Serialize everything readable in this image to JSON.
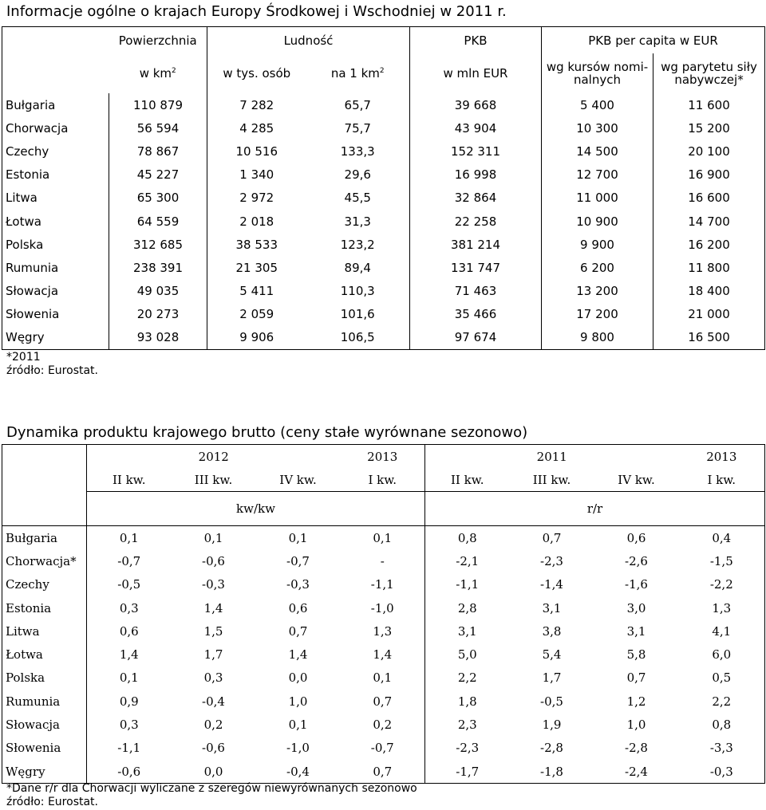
{
  "table1": {
    "title": "Informacje ogólne o krajach Europy Środkowej i Wschodniej w 2011 r.",
    "group_headers": [
      "Powierzchnia",
      "Ludność",
      "PKB",
      "PKB per capita w EUR"
    ],
    "sub_headers": {
      "area": "w km",
      "area_sup": "2",
      "population": "w tys. osób",
      "density": "na 1 km",
      "density_sup": "2",
      "gdp": "w mln EUR",
      "gdp_pc_nominal": "wg kursów nomi-nalnych",
      "gdp_pc_ppp": "wg parytetu siły nabywczej*"
    },
    "rows": [
      [
        "Bułgaria",
        "110 879",
        "7 282",
        "65,7",
        "39 668",
        "5 400",
        "11 600"
      ],
      [
        "Chorwacja",
        "56 594",
        "4 285",
        "75,7",
        "43 904",
        "10 300",
        "15 200"
      ],
      [
        "Czechy",
        "78 867",
        "10 516",
        "133,3",
        "152 311",
        "14 500",
        "20 100"
      ],
      [
        "Estonia",
        "45 227",
        "1 340",
        "29,6",
        "16 998",
        "12 700",
        "16 900"
      ],
      [
        "Litwa",
        "65 300",
        "2 972",
        "45,5",
        "32 864",
        "11 000",
        "16 600"
      ],
      [
        "Łotwa",
        "64 559",
        "2 018",
        "31,3",
        "22 258",
        "10 900",
        "14 700"
      ],
      [
        "Polska",
        "312 685",
        "38 533",
        "123,2",
        "381 214",
        "9 900",
        "16 200"
      ],
      [
        "Rumunia",
        "238 391",
        "21 305",
        "89,4",
        "131 747",
        "6 200",
        "11 800"
      ],
      [
        "Słowacja",
        "49 035",
        "5 411",
        "110,3",
        "71 463",
        "13 200",
        "18 400"
      ],
      [
        "Słowenia",
        "20 273",
        "2 059",
        "101,6",
        "35 466",
        "17 200",
        "21 000"
      ],
      [
        "Węgry",
        "93 028",
        "9 906",
        "106,5",
        "97 674",
        "9 800",
        "16 500"
      ]
    ],
    "note1": "*2011",
    "note2": "źródło: Eurostat."
  },
  "table2": {
    "title": "Dynamika produktu krajowego brutto (ceny stałe wyrównane sezonowo)",
    "years": [
      "2012",
      "2013",
      "2011",
      "2013"
    ],
    "quarters": [
      "II kw.",
      "III kw.",
      "IV kw.",
      "I kw.",
      "II kw.",
      "III kw.",
      "IV kw.",
      "I kw."
    ],
    "units": [
      "kw/kw",
      "r/r"
    ],
    "rows": [
      [
        "Bułgaria",
        "0,1",
        "0,1",
        "0,1",
        "0,1",
        "0,8",
        "0,7",
        "0,6",
        "0,4"
      ],
      [
        "Chorwacja*",
        "-0,7",
        "-0,6",
        "-0,7",
        "-",
        "-2,1",
        "-2,3",
        "-2,6",
        "-1,5"
      ],
      [
        "Czechy",
        "-0,5",
        "-0,3",
        "-0,3",
        "-1,1",
        "-1,1",
        "-1,4",
        "-1,6",
        "-2,2"
      ],
      [
        "Estonia",
        "0,3",
        "1,4",
        "0,6",
        "-1,0",
        "2,8",
        "3,1",
        "3,0",
        "1,3"
      ],
      [
        "Litwa",
        "0,6",
        "1,5",
        "0,7",
        "1,3",
        "3,1",
        "3,8",
        "3,1",
        "4,1"
      ],
      [
        "Łotwa",
        "1,4",
        "1,7",
        "1,4",
        "1,4",
        "5,0",
        "5,4",
        "5,8",
        "6,0"
      ],
      [
        "Polska",
        "0,1",
        "0,3",
        "0,0",
        "0,1",
        "2,2",
        "1,7",
        "0,7",
        "0,5"
      ],
      [
        "Rumunia",
        "0,9",
        "-0,4",
        "1,0",
        "0,7",
        "1,8",
        "-0,5",
        "1,2",
        "2,2"
      ],
      [
        "Słowacja",
        "0,3",
        "0,2",
        "0,1",
        "0,2",
        "2,3",
        "1,9",
        "1,0",
        "0,8"
      ],
      [
        "Słowenia",
        "-1,1",
        "-0,6",
        "-1,0",
        "-0,7",
        "-2,3",
        "-2,8",
        "-2,8",
        "-3,3"
      ],
      [
        "Węgry",
        "-0,6",
        "0,0",
        "-0,4",
        "0,7",
        "-1,7",
        "-1,8",
        "-2,4",
        "-0,3"
      ]
    ],
    "note1": "*Dane r/r dla Chorwacji wyliczane z szeregów niewyrównanych sezonowo",
    "note2": "źródło: Eurostat."
  }
}
